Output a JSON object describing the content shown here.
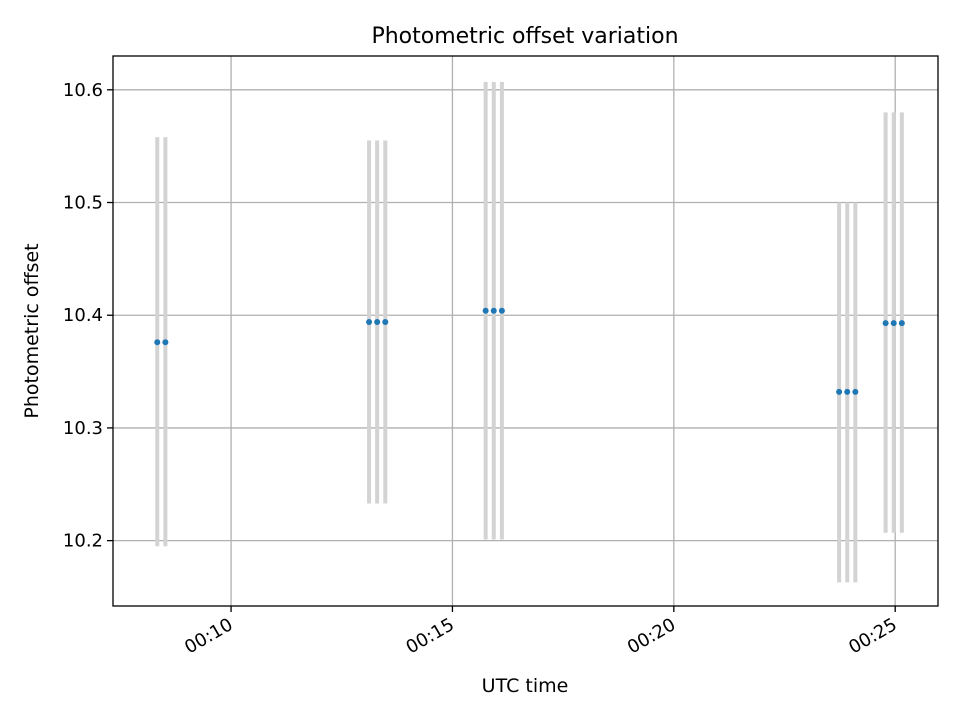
{
  "chart_data": {
    "type": "scatter",
    "title": "Photometric offset variation",
    "xlabel": "UTC time",
    "ylabel": "Photometric offset",
    "x_ticks": [
      "00:10",
      "00:15",
      "00:20",
      "00:25"
    ],
    "y_ticks": [
      "10.2",
      "10.3",
      "10.4",
      "10.5",
      "10.6"
    ],
    "xlim": [
      "00:07:20",
      "00:25:58"
    ],
    "ylim": [
      10.142,
      10.63
    ],
    "grid": true,
    "colors": {
      "point": "#1f77b4",
      "errorbar": "#d3d3d3",
      "grid": "#b0b0b0"
    },
    "points": [
      {
        "x": "00:08:20",
        "y": 10.376,
        "ymin": 10.195,
        "ymax": 10.558
      },
      {
        "x": "00:08:31",
        "y": 10.376,
        "ymin": 10.195,
        "ymax": 10.558
      },
      {
        "x": "00:13:07",
        "y": 10.394,
        "ymin": 10.233,
        "ymax": 10.555
      },
      {
        "x": "00:13:18",
        "y": 10.394,
        "ymin": 10.233,
        "ymax": 10.555
      },
      {
        "x": "00:13:29",
        "y": 10.394,
        "ymin": 10.233,
        "ymax": 10.555
      },
      {
        "x": "00:15:45",
        "y": 10.404,
        "ymin": 10.201,
        "ymax": 10.607
      },
      {
        "x": "00:15:56",
        "y": 10.404,
        "ymin": 10.201,
        "ymax": 10.607
      },
      {
        "x": "00:16:07",
        "y": 10.404,
        "ymin": 10.201,
        "ymax": 10.607
      },
      {
        "x": "00:23:44",
        "y": 10.332,
        "ymin": 10.163,
        "ymax": 10.5
      },
      {
        "x": "00:23:55",
        "y": 10.332,
        "ymin": 10.163,
        "ymax": 10.5
      },
      {
        "x": "00:24:06",
        "y": 10.332,
        "ymin": 10.163,
        "ymax": 10.5
      },
      {
        "x": "00:24:47",
        "y": 10.393,
        "ymin": 10.207,
        "ymax": 10.58
      },
      {
        "x": "00:24:58",
        "y": 10.393,
        "ymin": 10.207,
        "ymax": 10.58
      },
      {
        "x": "00:25:09",
        "y": 10.393,
        "ymin": 10.207,
        "ymax": 10.58
      }
    ]
  }
}
